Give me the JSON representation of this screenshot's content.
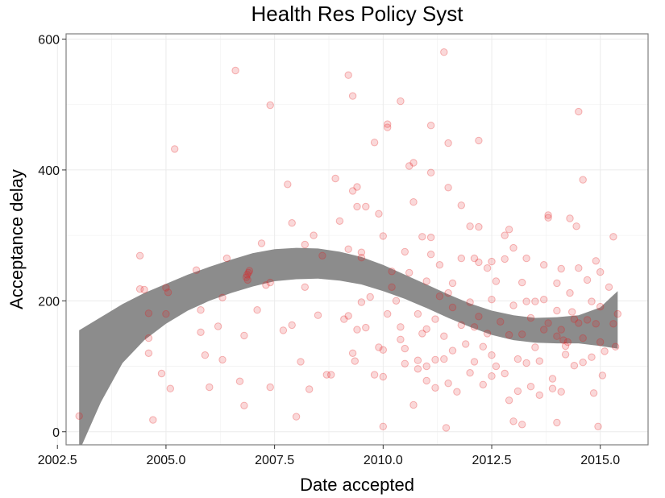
{
  "chart_data": {
    "type": "scatter",
    "title": "Health Res Policy Syst",
    "xlabel": "Date accepted",
    "ylabel": "Acceptance delay",
    "xlim": [
      2002.7,
      2016.1
    ],
    "ylim": [
      -20,
      608
    ],
    "x_ticks": [
      2002.5,
      2005.0,
      2007.5,
      2010.0,
      2012.5,
      2015.0
    ],
    "x_tick_labels": [
      "2002.5",
      "2005.0",
      "2007.5",
      "2010.0",
      "2012.5",
      "2015.0"
    ],
    "y_ticks": [
      0,
      200,
      400,
      600
    ],
    "y_tick_labels": [
      "0",
      "200",
      "400",
      "600"
    ],
    "grid": true,
    "colors": {
      "points": "#e31a1c",
      "band": "#8c8c8c"
    },
    "series": [
      {
        "type": "scatter",
        "points": [
          [
            2003.0,
            24
          ],
          [
            2004.4,
            269
          ],
          [
            2004.4,
            218
          ],
          [
            2004.5,
            217
          ],
          [
            2004.6,
            143
          ],
          [
            2004.6,
            120
          ],
          [
            2004.6,
            181
          ],
          [
            2004.7,
            18
          ],
          [
            2004.9,
            89
          ],
          [
            2005.0,
            220
          ],
          [
            2005.05,
            213
          ],
          [
            2005.0,
            180
          ],
          [
            2005.1,
            66
          ],
          [
            2005.2,
            432
          ],
          [
            2005.7,
            247
          ],
          [
            2005.8,
            186
          ],
          [
            2005.8,
            152
          ],
          [
            2005.9,
            117
          ],
          [
            2006.0,
            68
          ],
          [
            2006.2,
            161
          ],
          [
            2006.3,
            110
          ],
          [
            2006.3,
            205
          ],
          [
            2006.4,
            265
          ],
          [
            2006.6,
            552
          ],
          [
            2006.7,
            77
          ],
          [
            2006.8,
            40
          ],
          [
            2006.8,
            147
          ],
          [
            2006.85,
            236
          ],
          [
            2006.87,
            240
          ],
          [
            2006.9,
            243
          ],
          [
            2006.92,
            246
          ],
          [
            2006.88,
            232
          ],
          [
            2007.1,
            186
          ],
          [
            2007.2,
            288
          ],
          [
            2007.3,
            224
          ],
          [
            2007.4,
            228
          ],
          [
            2007.4,
            68
          ],
          [
            2007.4,
            499
          ],
          [
            2007.7,
            155
          ],
          [
            2007.8,
            378
          ],
          [
            2007.9,
            163
          ],
          [
            2007.9,
            319
          ],
          [
            2008.0,
            23
          ],
          [
            2008.1,
            107
          ],
          [
            2008.2,
            286
          ],
          [
            2008.2,
            221
          ],
          [
            2008.3,
            65
          ],
          [
            2008.4,
            300
          ],
          [
            2008.5,
            178
          ],
          [
            2008.6,
            269
          ],
          [
            2008.7,
            87
          ],
          [
            2008.8,
            87
          ],
          [
            2008.9,
            387
          ],
          [
            2009.0,
            322
          ],
          [
            2009.1,
            172
          ],
          [
            2009.2,
            279
          ],
          [
            2009.2,
            545
          ],
          [
            2009.3,
            513
          ],
          [
            2009.2,
            177
          ],
          [
            2009.3,
            368
          ],
          [
            2009.3,
            120
          ],
          [
            2009.35,
            108
          ],
          [
            2009.4,
            374
          ],
          [
            2009.4,
            344
          ],
          [
            2009.4,
            156
          ],
          [
            2009.5,
            274
          ],
          [
            2009.5,
            266
          ],
          [
            2009.5,
            198
          ],
          [
            2009.6,
            344
          ],
          [
            2009.6,
            159
          ],
          [
            2009.7,
            206
          ],
          [
            2009.8,
            442
          ],
          [
            2009.8,
            87
          ],
          [
            2009.9,
            129
          ],
          [
            2009.9,
            333
          ],
          [
            2010.0,
            299
          ],
          [
            2010.0,
            125
          ],
          [
            2010.0,
            84
          ],
          [
            2010.0,
            8
          ],
          [
            2010.1,
            470
          ],
          [
            2010.1,
            465
          ],
          [
            2010.1,
            180
          ],
          [
            2010.2,
            245
          ],
          [
            2010.2,
            221
          ],
          [
            2010.3,
            200
          ],
          [
            2010.4,
            505
          ],
          [
            2010.4,
            160
          ],
          [
            2010.4,
            141
          ],
          [
            2010.5,
            127
          ],
          [
            2010.5,
            104
          ],
          [
            2010.5,
            275
          ],
          [
            2010.6,
            406
          ],
          [
            2010.6,
            243
          ],
          [
            2010.7,
            351
          ],
          [
            2010.7,
            411
          ],
          [
            2010.7,
            41
          ],
          [
            2010.8,
            180
          ],
          [
            2010.8,
            109
          ],
          [
            2010.8,
            96
          ],
          [
            2010.9,
            150
          ],
          [
            2010.9,
            298
          ],
          [
            2011.0,
            230
          ],
          [
            2011.0,
            157
          ],
          [
            2011.0,
            100
          ],
          [
            2011.0,
            78
          ],
          [
            2011.1,
            297
          ],
          [
            2011.1,
            468
          ],
          [
            2011.1,
            396
          ],
          [
            2011.1,
            271
          ],
          [
            2011.2,
            172
          ],
          [
            2011.2,
            110
          ],
          [
            2011.2,
            67
          ],
          [
            2011.3,
            255
          ],
          [
            2011.3,
            207
          ],
          [
            2011.4,
            580
          ],
          [
            2011.4,
            146
          ],
          [
            2011.4,
            111
          ],
          [
            2011.45,
            6
          ],
          [
            2011.5,
            441
          ],
          [
            2011.5,
            373
          ],
          [
            2011.5,
            212
          ],
          [
            2011.5,
            74
          ],
          [
            2011.6,
            227
          ],
          [
            2011.6,
            190
          ],
          [
            2011.6,
            124
          ],
          [
            2011.7,
            61
          ],
          [
            2011.8,
            346
          ],
          [
            2011.8,
            265
          ],
          [
            2011.8,
            163
          ],
          [
            2011.9,
            134
          ],
          [
            2012.0,
            314
          ],
          [
            2012.0,
            198
          ],
          [
            2012.0,
            90
          ],
          [
            2012.1,
            265
          ],
          [
            2012.1,
            160
          ],
          [
            2012.1,
            107
          ],
          [
            2012.2,
            445
          ],
          [
            2012.2,
            313
          ],
          [
            2012.2,
            259
          ],
          [
            2012.2,
            176
          ],
          [
            2012.3,
            130
          ],
          [
            2012.3,
            72
          ],
          [
            2012.4,
            250
          ],
          [
            2012.4,
            150
          ],
          [
            2012.5,
            260
          ],
          [
            2012.5,
            202
          ],
          [
            2012.5,
            117
          ],
          [
            2012.5,
            85
          ],
          [
            2012.6,
            230
          ],
          [
            2012.6,
            100
          ],
          [
            2012.7,
            168
          ],
          [
            2012.8,
            300
          ],
          [
            2012.8,
            264
          ],
          [
            2012.8,
            89
          ],
          [
            2012.9,
            309
          ],
          [
            2012.9,
            148
          ],
          [
            2012.9,
            48
          ],
          [
            2013.0,
            281
          ],
          [
            2013.0,
            193
          ],
          [
            2013.0,
            16
          ],
          [
            2013.1,
            111
          ],
          [
            2013.1,
            62
          ],
          [
            2013.2,
            228
          ],
          [
            2013.2,
            149
          ],
          [
            2013.2,
            11
          ],
          [
            2013.3,
            265
          ],
          [
            2013.3,
            199
          ],
          [
            2013.3,
            105
          ],
          [
            2013.4,
            174
          ],
          [
            2013.4,
            69
          ],
          [
            2013.5,
            199
          ],
          [
            2013.5,
            129
          ],
          [
            2013.6,
            108
          ],
          [
            2013.6,
            56
          ],
          [
            2013.7,
            255
          ],
          [
            2013.7,
            202
          ],
          [
            2013.7,
            156
          ],
          [
            2013.8,
            331
          ],
          [
            2013.8,
            327
          ],
          [
            2013.8,
            166
          ],
          [
            2013.9,
            81
          ],
          [
            2013.9,
            66
          ],
          [
            2014.0,
            227
          ],
          [
            2014.0,
            185
          ],
          [
            2014.0,
            146
          ],
          [
            2014.0,
            14
          ],
          [
            2014.1,
            249
          ],
          [
            2014.1,
            156
          ],
          [
            2014.1,
            61
          ],
          [
            2014.15,
            140
          ],
          [
            2014.2,
            131
          ],
          [
            2014.2,
            118
          ],
          [
            2014.25,
            137
          ],
          [
            2014.3,
            326
          ],
          [
            2014.3,
            212
          ],
          [
            2014.35,
            183
          ],
          [
            2014.4,
            172
          ],
          [
            2014.4,
            101
          ],
          [
            2014.45,
            314
          ],
          [
            2014.5,
            489
          ],
          [
            2014.5,
            250
          ],
          [
            2014.5,
            166
          ],
          [
            2014.6,
            385
          ],
          [
            2014.6,
            143
          ],
          [
            2014.6,
            106
          ],
          [
            2014.7,
            232
          ],
          [
            2014.7,
            171
          ],
          [
            2014.8,
            199
          ],
          [
            2014.8,
            114
          ],
          [
            2014.85,
            59
          ],
          [
            2014.9,
            261
          ],
          [
            2014.9,
            165
          ],
          [
            2014.95,
            8
          ],
          [
            2015.0,
            244
          ],
          [
            2015.0,
            191
          ],
          [
            2015.0,
            137
          ],
          [
            2015.05,
            86
          ],
          [
            2015.1,
            123
          ],
          [
            2015.2,
            221
          ],
          [
            2015.3,
            165
          ],
          [
            2015.3,
            298
          ],
          [
            2015.35,
            130
          ],
          [
            2015.4,
            180
          ]
        ]
      },
      {
        "type": "confidence-band",
        "x": [
          2003.0,
          2003.5,
          2004.0,
          2004.5,
          2005.0,
          2005.5,
          2006.0,
          2006.5,
          2007.0,
          2007.5,
          2008.0,
          2008.5,
          2009.0,
          2009.5,
          2010.0,
          2010.5,
          2011.0,
          2011.5,
          2012.0,
          2012.5,
          2013.0,
          2013.5,
          2014.0,
          2014.5,
          2015.0,
          2015.4
        ],
        "lower": [
          -30,
          45,
          105,
          140,
          165,
          185,
          200,
          212,
          222,
          230,
          233,
          234,
          231,
          225,
          215,
          203,
          189,
          174,
          160,
          148,
          140,
          136,
          135,
          135,
          131,
          127
        ],
        "upper": [
          155,
          175,
          195,
          212,
          226,
          240,
          252,
          263,
          273,
          279,
          281,
          280,
          275,
          267,
          255,
          240,
          225,
          210,
          196,
          185,
          178,
          174,
          175,
          178,
          190,
          215
        ]
      }
    ]
  }
}
